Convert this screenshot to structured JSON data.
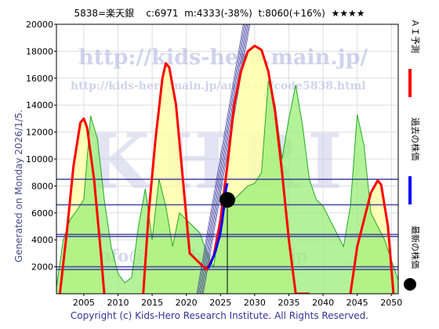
{
  "header": {
    "code": "5838=楽天銀",
    "stats": "c:6971  m:4333(-38%)  t:8060(+16%)",
    "stars": "★★★★"
  },
  "side_label": "Generated on Monday 2026/1/5.",
  "watermarks": {
    "url_main": "http://kids-hero.main.jp/",
    "url_code": "http://kids-hero.main.jp/analysis/code5838.html",
    "logo": "KHRI",
    "url_bottom": "info@kids-hero.main.jp"
  },
  "legend": [
    {
      "label": "ＡＩ予測",
      "color": "#ff0000"
    },
    {
      "label": "過去の株価",
      "color": "#0000ff"
    },
    {
      "label": "最新の株価",
      "color": "#000000"
    }
  ],
  "copyright": "Copyright (c) Kids-Hero Research Institute. All Rights Reserved.",
  "chart_data": {
    "type": "line",
    "xlim": [
      2001,
      2051
    ],
    "ylim": [
      0,
      20000
    ],
    "x_ticks": [
      2005,
      2010,
      2015,
      2020,
      2025,
      2030,
      2035,
      2040,
      2045,
      2050
    ],
    "y_ticks": [
      2000,
      4000,
      6000,
      8000,
      10000,
      12000,
      14000,
      16000,
      18000,
      20000
    ],
    "colors": {
      "ai_prediction": "#ff0000",
      "past_price": "#0000ff",
      "latest_price": "#000000",
      "green_fill": "#99ee77",
      "yellow_fill": "#ffffaa",
      "green_line": "#22aa22",
      "trend_channel": "#333399",
      "h_band": "#333399"
    },
    "series": [
      {
        "name": "ＡＩ予測",
        "x": [
          2001.5,
          2002.5,
          2003.5,
          2004.5,
          2005.0,
          2005.5,
          2006.5,
          2007.5,
          2008.0,
          2013.7,
          2014.5,
          2015.5,
          2016.5,
          2017.0,
          2017.5,
          2018.5,
          2019.5,
          2020.5,
          2022.5,
          2023.0,
          2024.0,
          2025.0,
          2026.0,
          2027.0,
          2028.0,
          2029.0,
          2030.0,
          2031.0,
          2032.0,
          2033.0,
          2034.0,
          2035.0,
          2036.0,
          2037.0,
          2038.0,
          2044.0,
          2045.0,
          2046.0,
          2047.0,
          2048.0,
          2048.5,
          2049.5,
          2050.3
        ],
        "y": [
          0,
          4500,
          9500,
          12700,
          13000,
          12300,
          8500,
          3000,
          0,
          0,
          6000,
          11500,
          16000,
          17100,
          16800,
          14000,
          8500,
          3000,
          2000,
          1800,
          2800,
          5500,
          9500,
          14000,
          16500,
          18000,
          18400,
          18100,
          16500,
          13500,
          9000,
          4000,
          0,
          0,
          0,
          0,
          3500,
          5500,
          7500,
          8400,
          8100,
          5000,
          0
        ]
      },
      {
        "name": "過去の株価",
        "x": [
          2023.2,
          2023.6,
          2024.0,
          2024.3,
          2024.6,
          2024.9,
          2025.2,
          2025.5,
          2025.8,
          2026.0
        ],
        "y": [
          1900,
          2300,
          2800,
          3200,
          3800,
          4300,
          5200,
          6400,
          7800,
          8200
        ]
      },
      {
        "name": "最新の株価",
        "x": [
          2026.0
        ],
        "y": [
          6971
        ]
      },
      {
        "name": "",
        "x": [
          2001,
          2002,
          2003,
          2004,
          2005,
          2006,
          2007,
          2008,
          2009,
          2010,
          2011,
          2012,
          2013,
          2014,
          2015,
          2016,
          2017,
          2018,
          2019,
          2020,
          2021,
          2022,
          2023,
          2024,
          2025,
          2026,
          2027,
          2028,
          2029,
          2030,
          2031,
          2032,
          2033,
          2034,
          2035,
          2036,
          2037,
          2038,
          2039,
          2040,
          2041,
          2042,
          2043,
          2044,
          2045,
          2046,
          2047,
          2048,
          2049,
          2050,
          2051
        ],
        "y": [
          500,
          4000,
          5500,
          6200,
          7000,
          13200,
          11500,
          7000,
          3500,
          1500,
          800,
          1200,
          5000,
          7800,
          4000,
          8500,
          6500,
          3500,
          6000,
          5500,
          5000,
          4500,
          3000,
          2000,
          5500,
          6800,
          7000,
          7500,
          8000,
          8200,
          9000,
          15800,
          14000,
          10000,
          13000,
          15500,
          12500,
          8500,
          7000,
          6500,
          5500,
          4500,
          3500,
          6500,
          13300,
          11000,
          6000,
          5000,
          4000,
          2500,
          1000
        ]
      }
    ],
    "h_lines": [
      8500,
      6600,
      4400,
      4250,
      2000,
      1800
    ],
    "trend_channel": {
      "x": [
        2022.0,
        2029.5
      ],
      "y": [
        0,
        22000
      ]
    }
  }
}
